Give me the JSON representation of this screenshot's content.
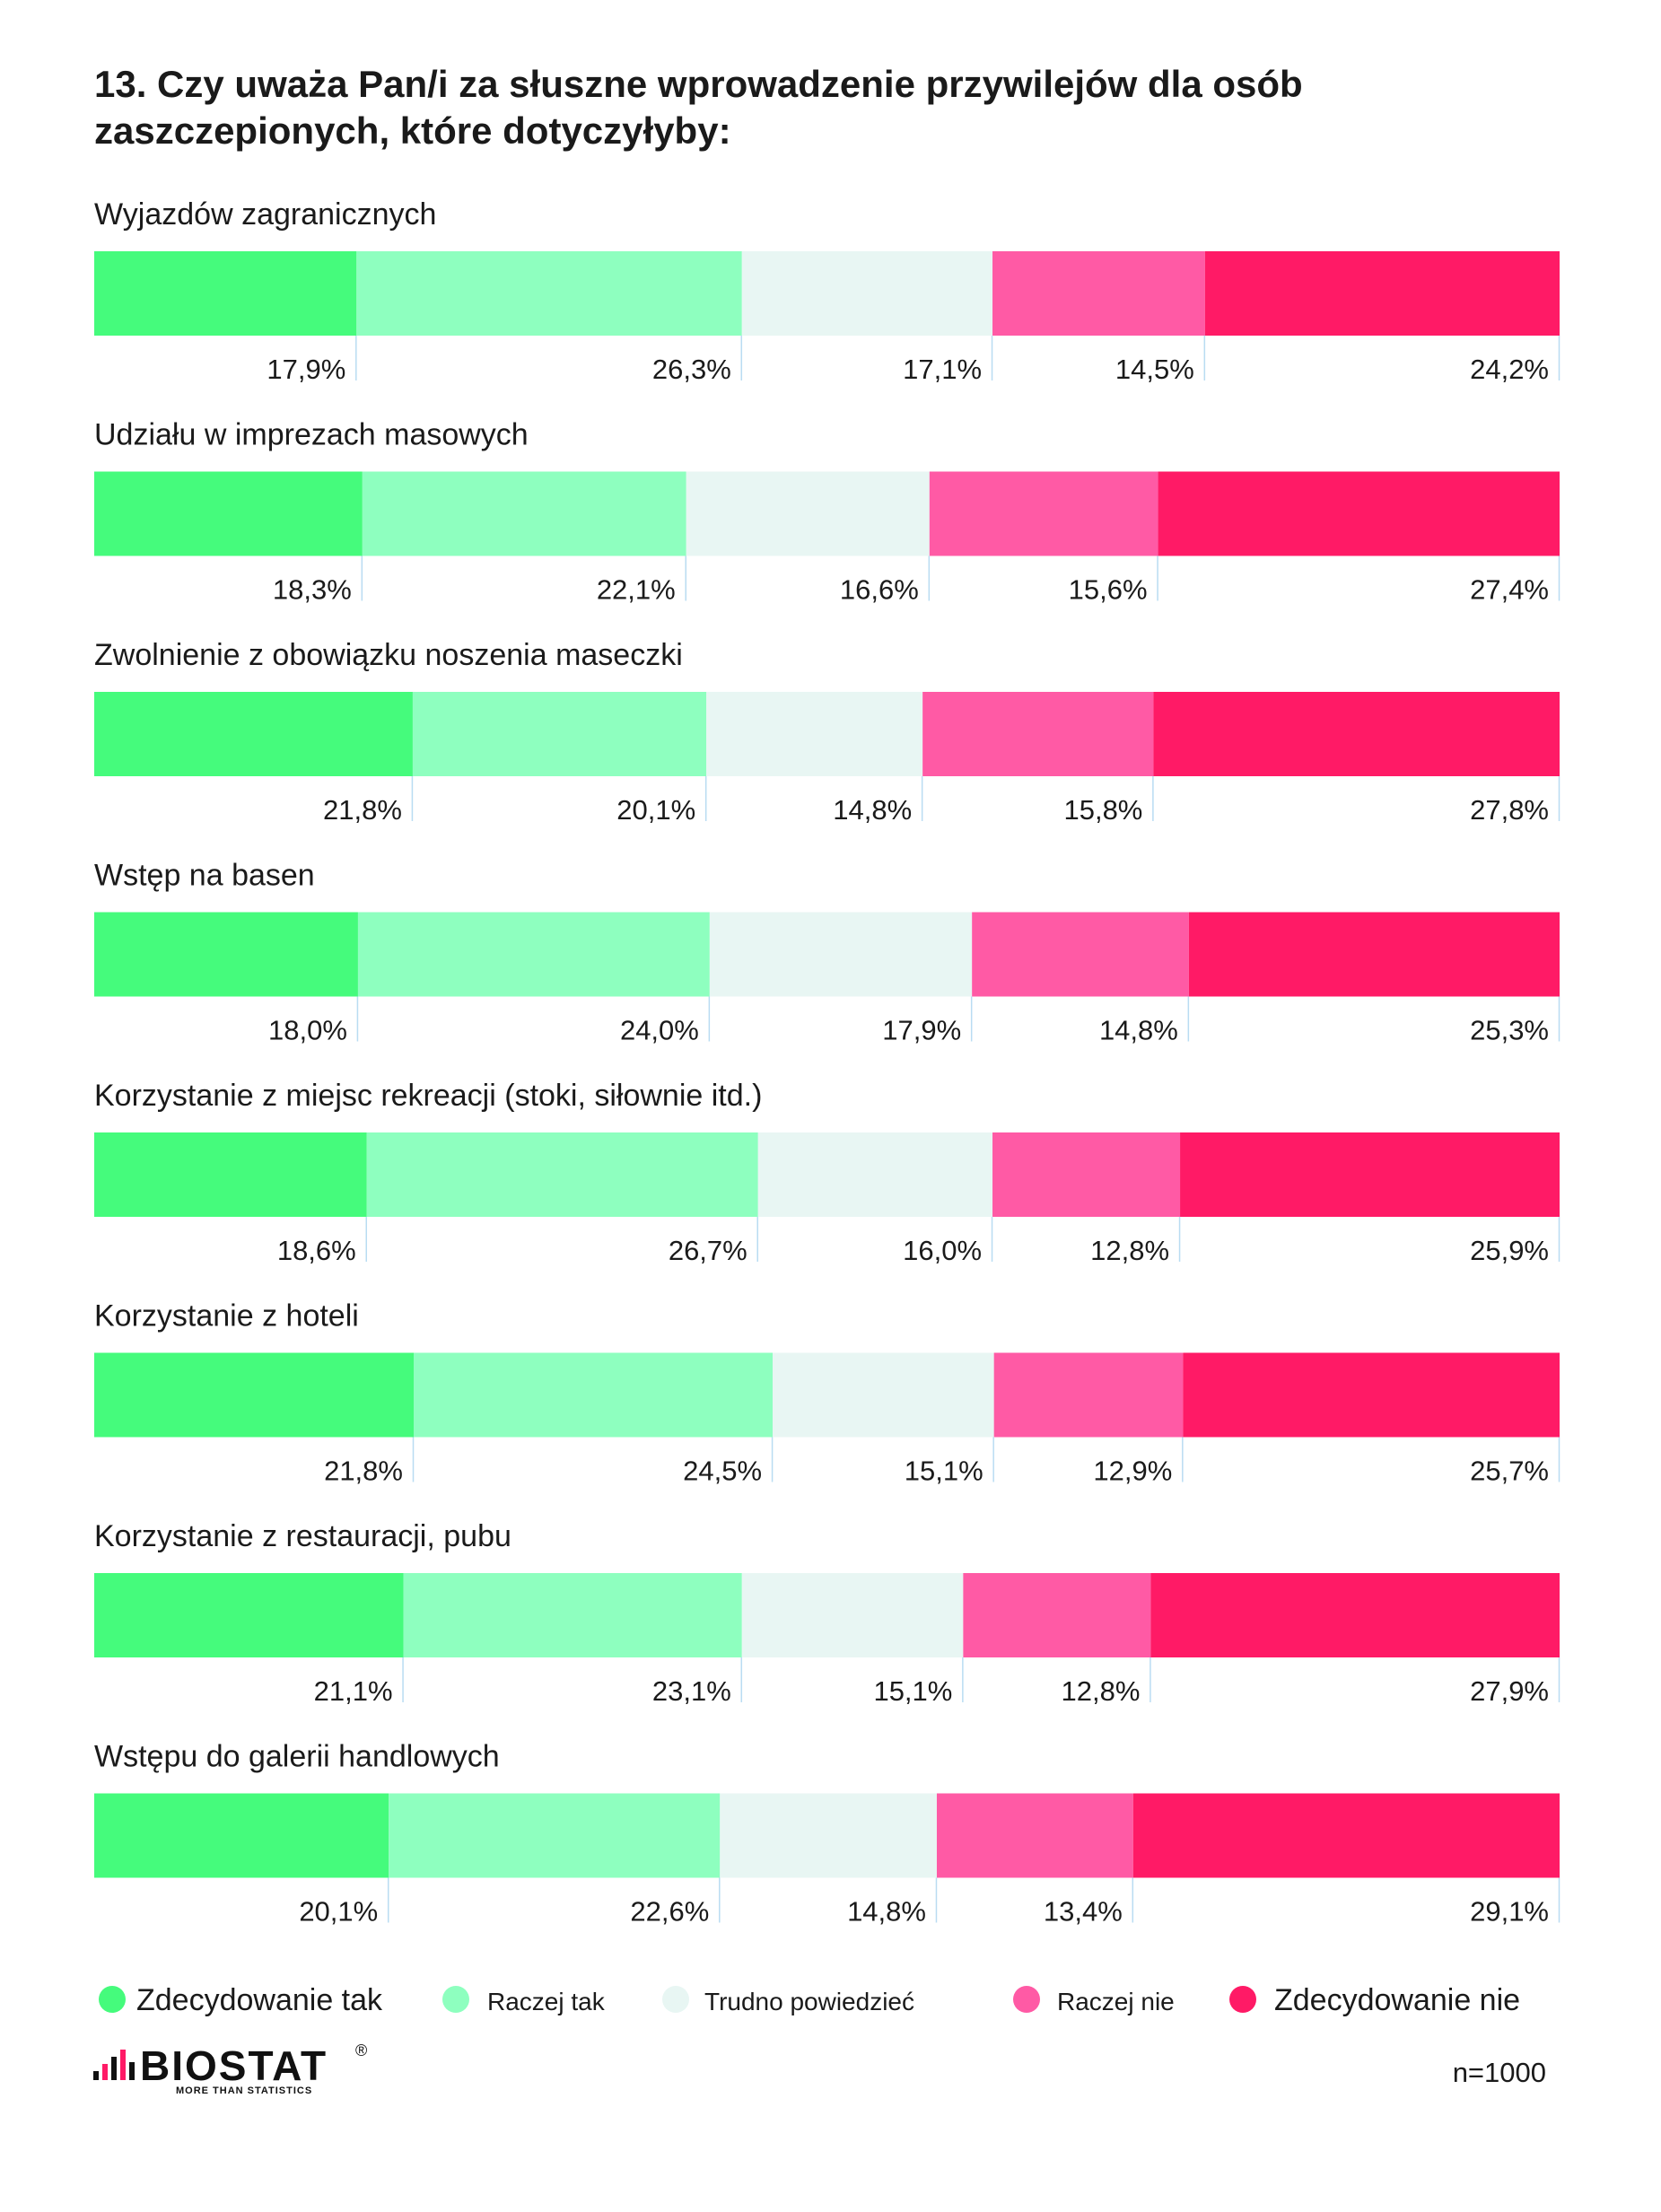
{
  "chart_data": {
    "type": "bar",
    "orientation": "horizontal",
    "stacked": true,
    "normalized": true,
    "unit": "%",
    "title_lines": [
      "13. Czy uważa Pan/i za słuszne wprowadzenie przywilejów dla osób",
      "zaszczepionych, które dotyczyłyby:"
    ],
    "xlim": [
      0,
      100
    ],
    "grid": false,
    "legend_placement": "bottom",
    "categories": [
      "Wyjazdów zagranicznych",
      "Udziału w imprezach masowych",
      "Zwolnienie z obowiązku noszenia maseczki",
      "Wstęp na basen",
      "Korzystanie z miejsc rekreacji (stoki, siłownie itd.)",
      "Korzystanie z hoteli",
      "Korzystanie z restauracji, pubu",
      "Wstępu do galerii handlowych"
    ],
    "series": [
      {
        "name": "Zdecydowanie tak",
        "color": "#45fb7c",
        "values": [
          17.9,
          18.3,
          21.8,
          18.0,
          18.6,
          21.8,
          21.1,
          20.1
        ],
        "labels": [
          "17,9%",
          "18,3%",
          "21,8%",
          "18,0%",
          "18,6%",
          "21,8%",
          "21,1%",
          "20,1%"
        ]
      },
      {
        "name": "Raczej tak",
        "color": "#8effbf",
        "values": [
          26.3,
          22.1,
          20.1,
          24.0,
          26.7,
          24.5,
          23.1,
          22.6
        ],
        "labels": [
          "26,3%",
          "22,1%",
          "20,1%",
          "24,0%",
          "26,7%",
          "24,5%",
          "23,1%",
          "22,6%"
        ]
      },
      {
        "name": "Trudno powiedzieć",
        "color": "#e8f6f3",
        "values": [
          17.1,
          16.6,
          14.8,
          17.9,
          16.0,
          15.1,
          15.1,
          14.8
        ],
        "labels": [
          "17,1%",
          "16,6%",
          "14,8%",
          "17,9%",
          "16,0%",
          "15,1%",
          "15,1%",
          "14,8%"
        ]
      },
      {
        "name": "Raczej nie",
        "color": "#ff5aa5",
        "values": [
          14.5,
          15.6,
          15.8,
          14.8,
          12.8,
          12.9,
          12.8,
          13.4
        ],
        "labels": [
          "14,5%",
          "15,6%",
          "15,8%",
          "14,8%",
          "12,8%",
          "12,9%",
          "12,8%",
          "13,4%"
        ]
      },
      {
        "name": "Zdecydowanie nie",
        "color": "#ff1a66",
        "values": [
          24.2,
          27.4,
          27.8,
          25.3,
          25.9,
          25.7,
          27.9,
          29.1
        ],
        "labels": [
          "24,2%",
          "27,4%",
          "27,8%",
          "25,3%",
          "25,9%",
          "25,7%",
          "27,9%",
          "29,1%"
        ]
      }
    ],
    "sample_note": "n=1000"
  },
  "brand": {
    "name": "BIOSTAT",
    "registered": "®",
    "tagline": "MORE THAN STATISTICS",
    "icon": "bar-signal-logo-icon",
    "accent_color": "#ff1a66"
  },
  "divider_color": "#b9dcf2"
}
